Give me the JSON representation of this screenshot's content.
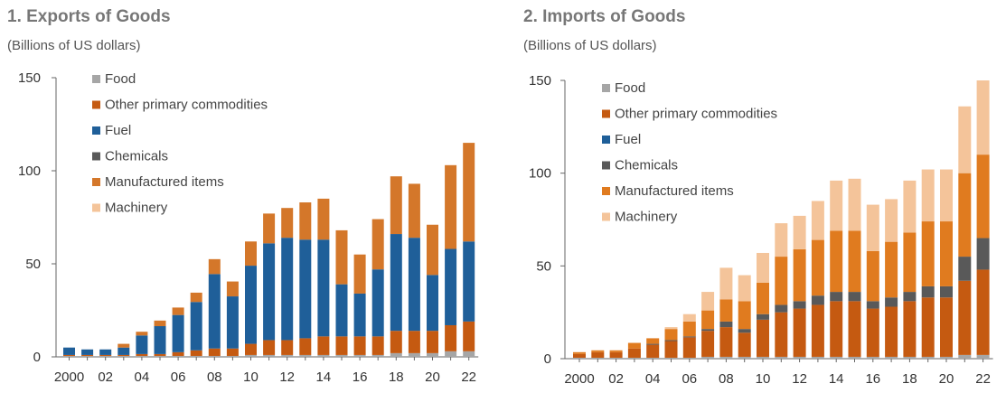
{
  "chart_data": [
    {
      "type": "bar",
      "stacked": true,
      "title": "1. Exports of Goods",
      "subtitle": "(Billions of US dollars)",
      "xlabel": "",
      "ylabel": "",
      "ylim": [
        0,
        150
      ],
      "yticks": [
        0,
        50,
        100,
        150
      ],
      "grid": false,
      "legend": "top-left",
      "categories": [
        "2000",
        "2001",
        "2002",
        "2003",
        "2004",
        "2005",
        "2006",
        "2007",
        "2008",
        "2009",
        "2010",
        "2011",
        "2012",
        "2013",
        "2014",
        "2015",
        "2016",
        "2017",
        "2018",
        "2019",
        "2020",
        "2021",
        "2022"
      ],
      "xtick_labels": [
        "2000",
        "",
        "02",
        "",
        "04",
        "",
        "06",
        "",
        "08",
        "",
        "10",
        "",
        "12",
        "",
        "14",
        "",
        "16",
        "",
        "18",
        "",
        "20",
        "",
        "22"
      ],
      "series": [
        {
          "name": "Food",
          "color": "#a6a6a6",
          "values": [
            0.5,
            0.5,
            0.5,
            0.5,
            0.5,
            0.5,
            0.5,
            0.5,
            0.5,
            0.5,
            1,
            1,
            1,
            1,
            1,
            1,
            1,
            1,
            2,
            2,
            2,
            3,
            3
          ]
        },
        {
          "name": "Other primary commodities",
          "color": "#c55a11",
          "values": [
            0.5,
            0.5,
            0.5,
            0.5,
            1,
            1,
            2,
            3,
            4,
            4,
            6,
            8,
            8,
            9,
            10,
            10,
            10,
            10,
            12,
            12,
            12,
            14,
            16
          ]
        },
        {
          "name": "Fuel",
          "color": "#1f5f99",
          "values": [
            4,
            3,
            3,
            4,
            10,
            15,
            20,
            26,
            40,
            28,
            42,
            52,
            55,
            53,
            52,
            28,
            23,
            36,
            52,
            50,
            30,
            41,
            43
          ]
        },
        {
          "name": "Chemicals",
          "color": "#595959",
          "values": [
            0,
            0,
            0,
            0,
            0,
            0,
            0,
            0,
            0,
            0,
            0,
            0,
            0,
            0,
            0,
            0,
            0,
            0,
            0,
            0,
            0,
            0,
            0
          ]
        },
        {
          "name": "Manufactured items",
          "color": "#d4772a",
          "values": [
            0,
            0,
            0,
            2,
            2,
            3,
            4,
            5,
            8,
            8,
            13,
            16,
            16,
            20,
            22,
            29,
            21,
            27,
            31,
            29,
            27,
            45,
            53
          ]
        },
        {
          "name": "Machinery",
          "color": "#f4c49a",
          "values": [
            0,
            0,
            0,
            0,
            0,
            0,
            0,
            0,
            0,
            0,
            0,
            0,
            0,
            0,
            0,
            0,
            0,
            0,
            0,
            0,
            0,
            0,
            0
          ]
        }
      ]
    },
    {
      "type": "bar",
      "stacked": true,
      "title": "2. Imports of Goods",
      "subtitle": "(Billions of US dollars)",
      "xlabel": "",
      "ylabel": "",
      "ylim": [
        0,
        150
      ],
      "yticks": [
        0,
        50,
        100,
        150
      ],
      "grid": false,
      "legend": "top-left",
      "categories": [
        "2000",
        "2001",
        "2002",
        "2003",
        "2004",
        "2005",
        "2006",
        "2007",
        "2008",
        "2009",
        "2010",
        "2011",
        "2012",
        "2013",
        "2014",
        "2015",
        "2016",
        "2017",
        "2018",
        "2019",
        "2020",
        "2021",
        "2022"
      ],
      "xtick_labels": [
        "2000",
        "",
        "02",
        "",
        "04",
        "",
        "06",
        "",
        "08",
        "",
        "10",
        "",
        "12",
        "",
        "14",
        "",
        "16",
        "",
        "18",
        "",
        "20",
        "",
        "22"
      ],
      "series": [
        {
          "name": "Food",
          "color": "#a6a6a6",
          "values": [
            0.5,
            0.5,
            0.5,
            0.5,
            0.5,
            0.5,
            0.5,
            1,
            1,
            1,
            1,
            1,
            1,
            1,
            1,
            1,
            1,
            1,
            1,
            1,
            1,
            2,
            2
          ]
        },
        {
          "name": "Other primary commodities",
          "color": "#c55a11",
          "values": [
            2,
            3,
            3,
            5,
            7,
            9,
            11,
            14,
            16,
            13,
            20,
            24,
            26,
            28,
            30,
            30,
            26,
            27,
            30,
            32,
            32,
            40,
            46
          ]
        },
        {
          "name": "Fuel",
          "color": "#1f5f99",
          "values": [
            0,
            0,
            0,
            0,
            0,
            0,
            0,
            0,
            0,
            0,
            0,
            0,
            0,
            0,
            0,
            0,
            0,
            0,
            0,
            0,
            0,
            0,
            0
          ]
        },
        {
          "name": "Chemicals",
          "color": "#595959",
          "values": [
            0,
            0,
            0,
            0,
            0.5,
            0.5,
            0.5,
            1,
            3,
            2,
            3,
            4,
            4,
            5,
            5,
            5,
            4,
            5,
            5,
            6,
            6,
            13,
            17
          ]
        },
        {
          "name": "Manufactured items",
          "color": "#e07b1f",
          "values": [
            1,
            1,
            1,
            3,
            3,
            6,
            8,
            10,
            12,
            15,
            17,
            26,
            28,
            30,
            33,
            33,
            27,
            30,
            32,
            35,
            35,
            45,
            45
          ]
        },
        {
          "name": "Machinery",
          "color": "#f4c49a",
          "values": [
            0,
            0,
            0,
            0,
            0,
            1,
            4,
            10,
            17,
            14,
            16,
            18,
            18,
            21,
            27,
            28,
            25,
            23,
            28,
            28,
            28,
            36,
            40
          ]
        }
      ]
    }
  ]
}
